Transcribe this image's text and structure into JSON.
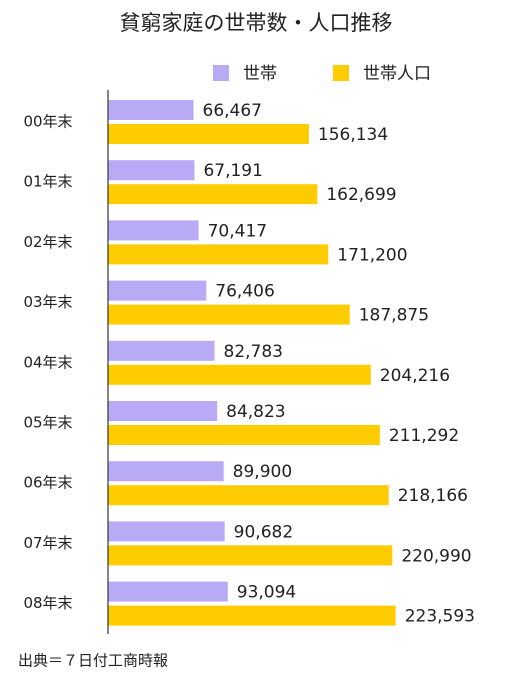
{
  "chart_data": {
    "type": "hbar",
    "title": "貧窮家庭の世帯数・人口推移",
    "categories": [
      "00年末",
      "01年末",
      "02年末",
      "03年末",
      "04年末",
      "05年末",
      "06年末",
      "07年末",
      "08年末"
    ],
    "series": [
      {
        "name": "世帯",
        "color": "#b9aaf5",
        "values": [
          66467,
          67191,
          70417,
          76406,
          82783,
          84823,
          89900,
          90682,
          93094
        ],
        "value_labels": [
          "66,467",
          "67,191",
          "70,417",
          "76,406",
          "82,783",
          "84,823",
          "89,900",
          "90,682",
          "93,094"
        ]
      },
      {
        "name": "世帯人口",
        "color": "#ffcc00",
        "values": [
          156134,
          162699,
          171200,
          187875,
          204216,
          211292,
          218166,
          220990,
          223593
        ],
        "value_labels": [
          "156,134",
          "162,699",
          "171,200",
          "187,875",
          "204,216",
          "211,292",
          "218,166",
          "220,990",
          "223,593"
        ]
      }
    ],
    "xlim": [
      0,
      300000
    ],
    "source": "出典＝７日付工商時報"
  }
}
